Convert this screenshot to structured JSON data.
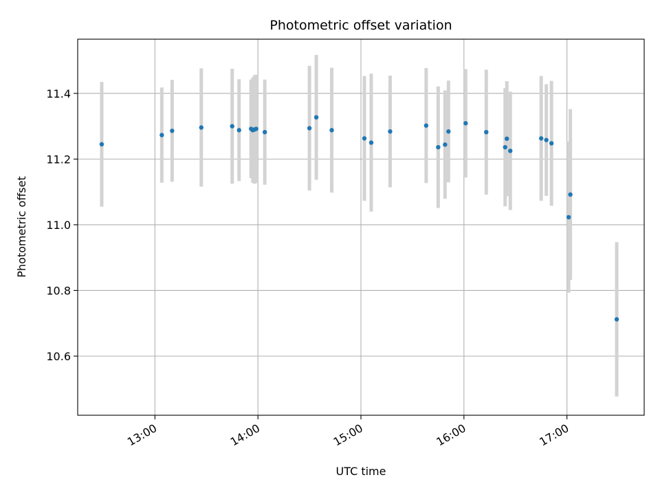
{
  "chart_data": {
    "type": "scatter",
    "title": "Photometric offset variation",
    "xlabel": "UTC time",
    "ylabel": "Photometric offset",
    "x_tick_labels": [
      "13:00",
      "14:00",
      "15:00",
      "16:00",
      "17:00"
    ],
    "x_tick_values": [
      "13:00",
      "14:00",
      "15:00",
      "16:00",
      "17:00"
    ],
    "y_tick_labels": [
      "10.6",
      "10.8",
      "11.0",
      "11.2",
      "11.4"
    ],
    "y_tick_values": [
      10.6,
      10.8,
      11.0,
      11.2,
      11.4
    ],
    "xlim": [
      "12:15",
      "17:45"
    ],
    "ylim": [
      10.42,
      11.565
    ],
    "grid": true,
    "marker_color": "#1f77b4",
    "errorbar_color": "#d3d3d3",
    "points": [
      {
        "x": "12:29",
        "y": 11.245,
        "err": 0.19
      },
      {
        "x": "13:04",
        "y": 11.273,
        "err": 0.145
      },
      {
        "x": "13:10",
        "y": 11.286,
        "err": 0.155
      },
      {
        "x": "13:27",
        "y": 11.296,
        "err": 0.18
      },
      {
        "x": "13:45",
        "y": 11.3,
        "err": 0.175
      },
      {
        "x": "13:49",
        "y": 11.288,
        "err": 0.155
      },
      {
        "x": "13:56",
        "y": 11.292,
        "err": 0.15
      },
      {
        "x": "13:57",
        "y": 11.288,
        "err": 0.16
      },
      {
        "x": "13:58",
        "y": 11.29,
        "err": 0.165
      },
      {
        "x": "13:59",
        "y": 11.292,
        "err": 0.165
      },
      {
        "x": "14:04",
        "y": 11.282,
        "err": 0.16
      },
      {
        "x": "14:30",
        "y": 11.294,
        "err": 0.19
      },
      {
        "x": "14:34",
        "y": 11.327,
        "err": 0.19
      },
      {
        "x": "14:43",
        "y": 11.288,
        "err": 0.19
      },
      {
        "x": "15:02",
        "y": 11.263,
        "err": 0.19
      },
      {
        "x": "15:06",
        "y": 11.25,
        "err": 0.21
      },
      {
        "x": "15:17",
        "y": 11.284,
        "err": 0.17
      },
      {
        "x": "15:38",
        "y": 11.302,
        "err": 0.175
      },
      {
        "x": "15:45",
        "y": 11.236,
        "err": 0.185
      },
      {
        "x": "15:49",
        "y": 11.244,
        "err": 0.165
      },
      {
        "x": "15:51",
        "y": 11.284,
        "err": 0.155
      },
      {
        "x": "16:01",
        "y": 11.309,
        "err": 0.165
      },
      {
        "x": "16:13",
        "y": 11.282,
        "err": 0.19
      },
      {
        "x": "16:24",
        "y": 11.236,
        "err": 0.18
      },
      {
        "x": "16:25",
        "y": 11.262,
        "err": 0.175
      },
      {
        "x": "16:27",
        "y": 11.225,
        "err": 0.18
      },
      {
        "x": "16:45",
        "y": 11.263,
        "err": 0.19
      },
      {
        "x": "16:48",
        "y": 11.258,
        "err": 0.17
      },
      {
        "x": "16:51",
        "y": 11.248,
        "err": 0.19
      },
      {
        "x": "17:01",
        "y": 11.023,
        "err": 0.23
      },
      {
        "x": "17:02",
        "y": 11.092,
        "err": 0.26
      },
      {
        "x": "17:29",
        "y": 10.712,
        "err": 0.235
      }
    ]
  }
}
